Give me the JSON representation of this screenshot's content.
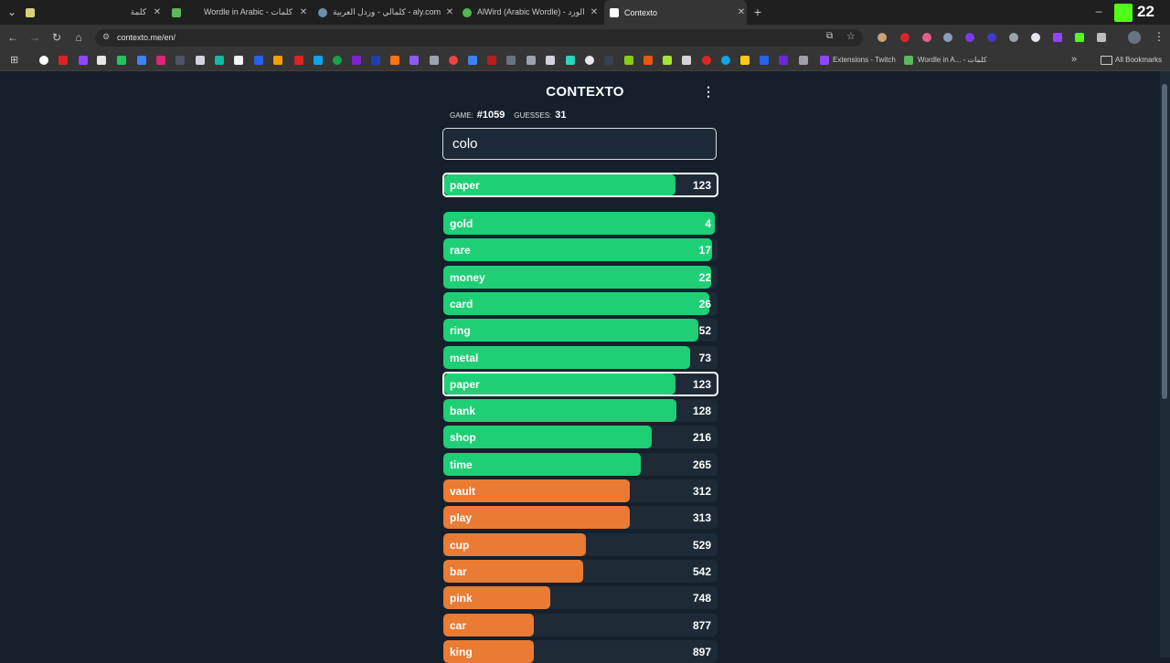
{
  "browser": {
    "tabs": [
      {
        "title": "كلمة",
        "favicon_color": "#d6d17a"
      },
      {
        "title": "Wordle in Arabic - كلمات",
        "favicon_color": "#5bb85b"
      },
      {
        "title": "كلمالي - وردل العربية - aly.com",
        "favicon_color": "#6d8fa8"
      },
      {
        "title": "AlWird (Arabic Wordle) - الورد",
        "favicon_color": "#53b653"
      },
      {
        "title": "Contexto",
        "favicon_color": "#ffffff"
      }
    ],
    "new_tab_label": "+",
    "badge_number": "22",
    "url": "contexto.me/en/",
    "bookmarks": {
      "extensions_label": "Extensions - Twitch",
      "wordle_label": "Wordle in A... - كلمات",
      "all_bookmarks": "All Bookmarks"
    }
  },
  "game": {
    "logo": "CONTEXTO",
    "game_label": "GAME:",
    "game_number": "#1059",
    "guesses_label": "GUESSES:",
    "guesses_count": "31",
    "input_value": "colo",
    "colors": {
      "green": "#1fcf76",
      "orange": "#ea7b34",
      "track": "#1e2b37"
    },
    "last_guess": {
      "word": "paper",
      "rank": 123,
      "fill": 0.85
    },
    "guesses": [
      {
        "word": "gold",
        "rank": 4,
        "fill": 0.99
      },
      {
        "word": "rare",
        "rank": 17,
        "fill": 0.98
      },
      {
        "word": "money",
        "rank": 22,
        "fill": 0.975
      },
      {
        "word": "card",
        "rank": 26,
        "fill": 0.97
      },
      {
        "word": "ring",
        "rank": 52,
        "fill": 0.93
      },
      {
        "word": "metal",
        "rank": 73,
        "fill": 0.9
      },
      {
        "word": "paper",
        "rank": 123,
        "fill": 0.85,
        "highlight": true
      },
      {
        "word": "bank",
        "rank": 128,
        "fill": 0.85
      },
      {
        "word": "shop",
        "rank": 216,
        "fill": 0.76
      },
      {
        "word": "time",
        "rank": 265,
        "fill": 0.72
      },
      {
        "word": "vault",
        "rank": 312,
        "fill": 0.68
      },
      {
        "word": "play",
        "rank": 313,
        "fill": 0.68
      },
      {
        "word": "cup",
        "rank": 529,
        "fill": 0.52
      },
      {
        "word": "bar",
        "rank": 542,
        "fill": 0.51
      },
      {
        "word": "pink",
        "rank": 748,
        "fill": 0.39
      },
      {
        "word": "car",
        "rank": 877,
        "fill": 0.33
      },
      {
        "word": "king",
        "rank": 897,
        "fill": 0.33
      }
    ]
  }
}
